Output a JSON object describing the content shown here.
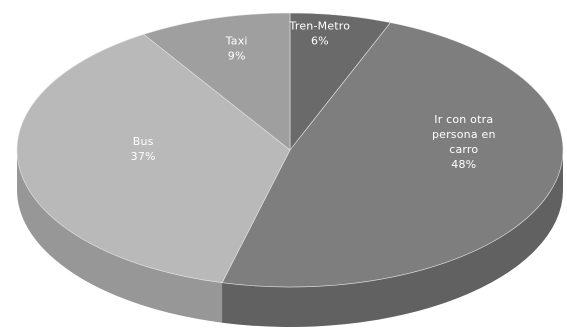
{
  "chart_data": {
    "type": "pie",
    "style": "3d",
    "title": "",
    "slices": [
      {
        "label_lines": [
          "Tren-Metro"
        ],
        "percent_label": "6%",
        "value": 6,
        "color": "#6a6a6a",
        "side_color": "#555555"
      },
      {
        "label_lines": [
          "Ir con otra",
          "persona en",
          "carro"
        ],
        "percent_label": "48%",
        "value": 48,
        "color": "#7e7e7e",
        "side_color": "#616161"
      },
      {
        "label_lines": [
          "Bus"
        ],
        "percent_label": "37%",
        "value": 37,
        "color": "#b9b9b9",
        "side_color": "#979797"
      },
      {
        "label_lines": [
          "Taxi"
        ],
        "percent_label": "9%",
        "value": 9,
        "color": "#9f9f9f",
        "side_color": "#828282"
      }
    ],
    "legend": "none"
  }
}
